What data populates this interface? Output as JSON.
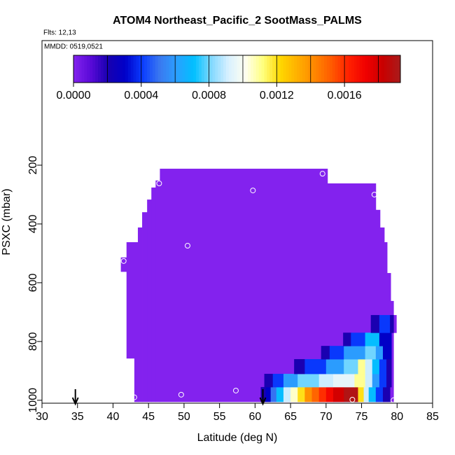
{
  "chart_data": {
    "type": "curtain",
    "title": "ATOM4 Northeast_Pacific_2 SootMass_PALMS",
    "flights": "Flts: 12,13",
    "dates": "MMDD: 0519,0521",
    "x_label": "Latitude (deg N)",
    "y_label": "PSXC (mbar)",
    "xlim": [
      30,
      85
    ],
    "xticks": [
      30,
      35,
      40,
      45,
      50,
      55,
      60,
      65,
      70,
      75,
      80,
      85
    ],
    "ylim": [
      1010,
      -224
    ],
    "yticks": [
      200,
      400,
      600,
      800,
      1000
    ],
    "clim": [
      0,
      0.00193
    ],
    "cticks": [
      {
        "value": 0,
        "label": "0.0000"
      },
      {
        "value": 0.0004,
        "label": "0.0004"
      },
      {
        "value": 0.0008,
        "label": "0.0008"
      },
      {
        "value": 0.0012,
        "label": "0.0012"
      },
      {
        "value": 0.0016,
        "label": "0.0016"
      }
    ],
    "colorbar_divisions": [
      0.0002,
      0.0004,
      0.0006,
      0.0008,
      0.001,
      0.0012,
      0.0014,
      0.0016,
      0.0018
    ],
    "colorscale": [
      "#8322ee",
      "#5a0ad8",
      "#1800b0",
      "#0000c8",
      "#0a3cff",
      "#3a78f0",
      "#2aa0ff",
      "#00c0ff",
      "#80d8ff",
      "#d8f0ff",
      "#fffff0",
      "#ffff80",
      "#ffd800",
      "#ffb000",
      "#ff8800",
      "#ff5a00",
      "#ff2000",
      "#f00000",
      "#c80000",
      "#a81c1c"
    ],
    "cells": {
      "lat_min": [
        41.1,
        41.9,
        42.4,
        43.0,
        43.5,
        44.1,
        44.8,
        45.4,
        46.0,
        46.6,
        70.2,
        77.0,
        77.6,
        78.2,
        78.6,
        79.1,
        79.5,
        60.8,
        61.5,
        62.2,
        63.0,
        64.0,
        65.0,
        66.0,
        67.0,
        68.0,
        69.0,
        70.0,
        71.0,
        72.5,
        74.5,
        75.3,
        76.0,
        77.0,
        78.0,
        61.3,
        62.5,
        64.0,
        66.0,
        69.0,
        71.0,
        74.0,
        75.5,
        76.5,
        77.5,
        78.5,
        65.5,
        67.0,
        70.0,
        72.5,
        74.5,
        75.5,
        76.5,
        77.5,
        78.5,
        69.3,
        70.5,
        72.5,
        75.5,
        77.0,
        78.0,
        72.4,
        73.5,
        75.5,
        77.5,
        76.3,
        77.5,
        79.0
      ],
      "lat_max": [
        41.9,
        42.4,
        43.0,
        43.5,
        44.1,
        44.8,
        45.4,
        46.0,
        46.6,
        70.2,
        77.0,
        77.6,
        78.2,
        78.6,
        79.1,
        79.5,
        79.9,
        61.5,
        62.2,
        63.0,
        64.0,
        65.0,
        66.0,
        67.0,
        68.0,
        69.0,
        70.0,
        71.0,
        72.5,
        74.5,
        75.3,
        76.0,
        77.0,
        78.0,
        79.0,
        62.5,
        64.0,
        66.0,
        69.0,
        71.0,
        74.0,
        75.5,
        76.5,
        77.5,
        78.5,
        79.2,
        67.0,
        70.0,
        72.5,
        74.5,
        75.5,
        76.5,
        77.5,
        78.5,
        79.2,
        70.5,
        72.5,
        75.5,
        77.0,
        78.0,
        79.2,
        73.5,
        75.5,
        77.5,
        79.2,
        77.5,
        79.0,
        79.5
      ],
      "p_top": [
        514,
        462,
        462,
        462,
        412,
        360,
        317,
        276,
        252,
        212,
        262,
        352,
        412,
        462,
        567,
        662,
        710,
        955,
        955,
        955,
        955,
        955,
        955,
        955,
        955,
        955,
        955,
        955,
        955,
        955,
        955,
        955,
        955,
        955,
        955,
        910,
        910,
        910,
        910,
        910,
        910,
        910,
        910,
        910,
        910,
        910,
        860,
        860,
        860,
        860,
        860,
        860,
        860,
        860,
        860,
        815,
        815,
        815,
        815,
        815,
        815,
        770,
        770,
        770,
        770,
        710,
        710,
        710
      ],
      "p_bottom": [
        562,
        857,
        857,
        1005,
        1005,
        1005,
        1005,
        1005,
        1005,
        1005,
        1005,
        1005,
        1005,
        1005,
        1005,
        1005,
        770,
        1005,
        1005,
        1005,
        1005,
        1005,
        1005,
        1005,
        1005,
        1005,
        1005,
        1005,
        1005,
        1005,
        1005,
        1005,
        1005,
        1005,
        1005,
        955,
        955,
        955,
        955,
        955,
        955,
        955,
        955,
        955,
        955,
        955,
        910,
        910,
        910,
        910,
        910,
        910,
        910,
        910,
        910,
        860,
        860,
        860,
        860,
        860,
        860,
        815,
        815,
        815,
        815,
        770,
        770,
        770
      ],
      "values": [
        0,
        0,
        0,
        0,
        0,
        0,
        0,
        0,
        0,
        0,
        0,
        0,
        0,
        0,
        0,
        0,
        0,
        0.0002,
        0.0003,
        0.0005,
        0.0007,
        0.0009,
        0.00105,
        0.0012,
        0.0014,
        0.0015,
        0.0016,
        0.0017,
        0.0018,
        0.0019,
        0.0012,
        0.0009,
        0.0007,
        0.0004,
        0.0002,
        0.0002,
        0.0004,
        0.0006,
        0.0008,
        0.0009,
        0.00095,
        0.0011,
        0.0009,
        0.0006,
        0.0004,
        0.0002,
        0.0002,
        0.0004,
        0.0006,
        0.0008,
        0.0011,
        0.0009,
        0.0007,
        0.0004,
        0.0002,
        0.0002,
        0.0004,
        0.0006,
        0.0008,
        0.0006,
        0.0003,
        0.0002,
        0.0004,
        0.0007,
        0.0003,
        0.0002,
        0.0004,
        0.0002
      ]
    },
    "points": {
      "lat": [
        69.5,
        46.5,
        59.7,
        76.8,
        50.5,
        41.5,
        80.0,
        57.3,
        49.6,
        43.0,
        73.7,
        79.5
      ],
      "p": [
        229,
        262,
        286,
        300,
        474,
        526,
        700,
        967,
        981,
        990,
        998,
        1000
      ]
    },
    "arrows": [
      34.7,
      61.1
    ]
  }
}
